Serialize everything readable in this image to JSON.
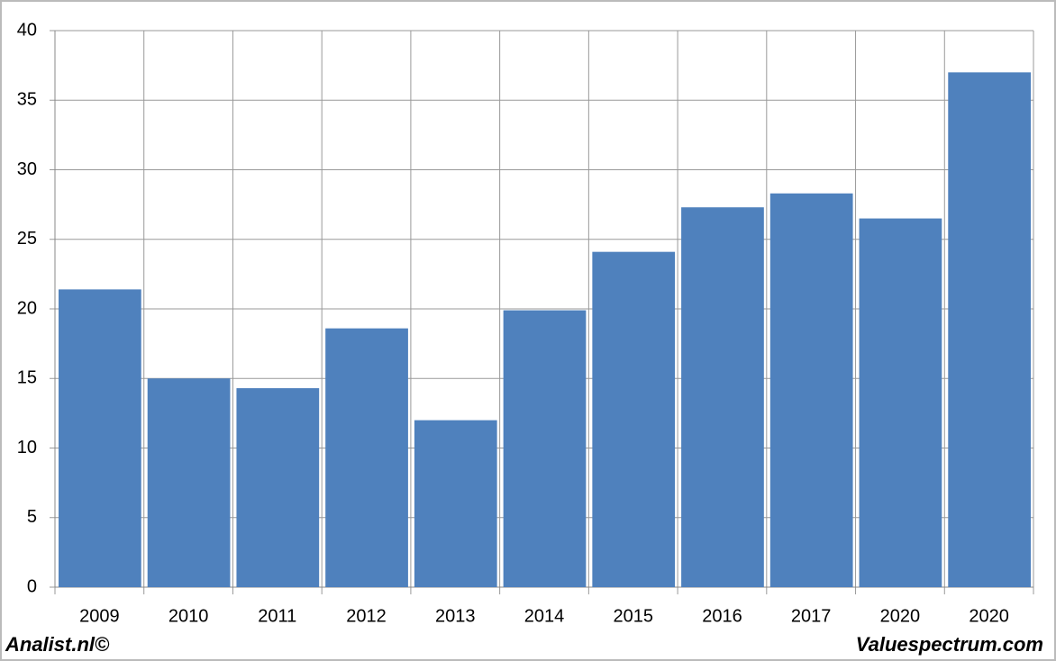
{
  "chart_data": {
    "type": "bar",
    "categories": [
      "2009",
      "2010",
      "2011",
      "2012",
      "2013",
      "2014",
      "2015",
      "2016",
      "2017",
      "2020",
      "2020"
    ],
    "values": [
      21.4,
      15.0,
      14.3,
      18.6,
      12.0,
      19.9,
      24.1,
      27.3,
      28.3,
      26.5,
      37.0
    ],
    "color": "#4f81bd",
    "ylim": [
      0,
      40
    ],
    "yticks": [
      0,
      5,
      10,
      15,
      20,
      25,
      30,
      35,
      40
    ],
    "grid": true,
    "footer_left": "Analist.nl©",
    "footer_right": "Valuespectrum.com"
  }
}
